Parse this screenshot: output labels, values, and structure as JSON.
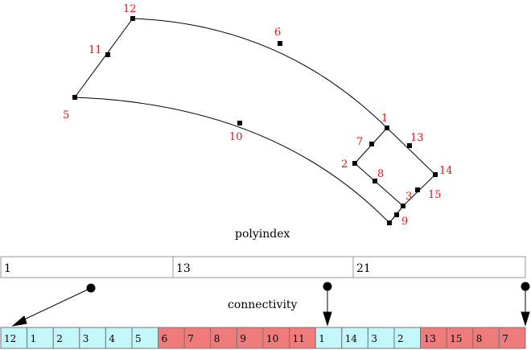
{
  "captions": {
    "polyindex": "polyindex",
    "connectivity": "connectivity"
  },
  "mesh_nodes": [
    {
      "id": "12",
      "label": "12"
    },
    {
      "id": "11",
      "label": "11"
    },
    {
      "id": "5",
      "label": "5"
    },
    {
      "id": "6",
      "label": "6"
    },
    {
      "id": "10",
      "label": "10"
    },
    {
      "id": "1",
      "label": "1"
    },
    {
      "id": "7",
      "label": "7"
    },
    {
      "id": "13",
      "label": "13"
    },
    {
      "id": "2",
      "label": "2"
    },
    {
      "id": "8",
      "label": "8"
    },
    {
      "id": "14",
      "label": "14"
    },
    {
      "id": "3",
      "label": "3"
    },
    {
      "id": "15",
      "label": "15"
    },
    {
      "id": "9",
      "label": "9"
    }
  ],
  "polyindex": [
    "1",
    "13",
    "21"
  ],
  "connectivity": [
    {
      "value": "12",
      "group": "a"
    },
    {
      "value": "1",
      "group": "a"
    },
    {
      "value": "2",
      "group": "a"
    },
    {
      "value": "3",
      "group": "a"
    },
    {
      "value": "4",
      "group": "a"
    },
    {
      "value": "5",
      "group": "a"
    },
    {
      "value": "6",
      "group": "b"
    },
    {
      "value": "7",
      "group": "b"
    },
    {
      "value": "8",
      "group": "b"
    },
    {
      "value": "9",
      "group": "b"
    },
    {
      "value": "10",
      "group": "b"
    },
    {
      "value": "11",
      "group": "b"
    },
    {
      "value": "1",
      "group": "a"
    },
    {
      "value": "14",
      "group": "a"
    },
    {
      "value": "3",
      "group": "a"
    },
    {
      "value": "2",
      "group": "a"
    },
    {
      "value": "13",
      "group": "b"
    },
    {
      "value": "15",
      "group": "b"
    },
    {
      "value": "8",
      "group": "b"
    },
    {
      "value": "7",
      "group": "b"
    }
  ],
  "colors": {
    "cell_a": "#c2f6f9",
    "cell_b": "#f07b7b",
    "label": "#e01010",
    "line": "#000000"
  }
}
